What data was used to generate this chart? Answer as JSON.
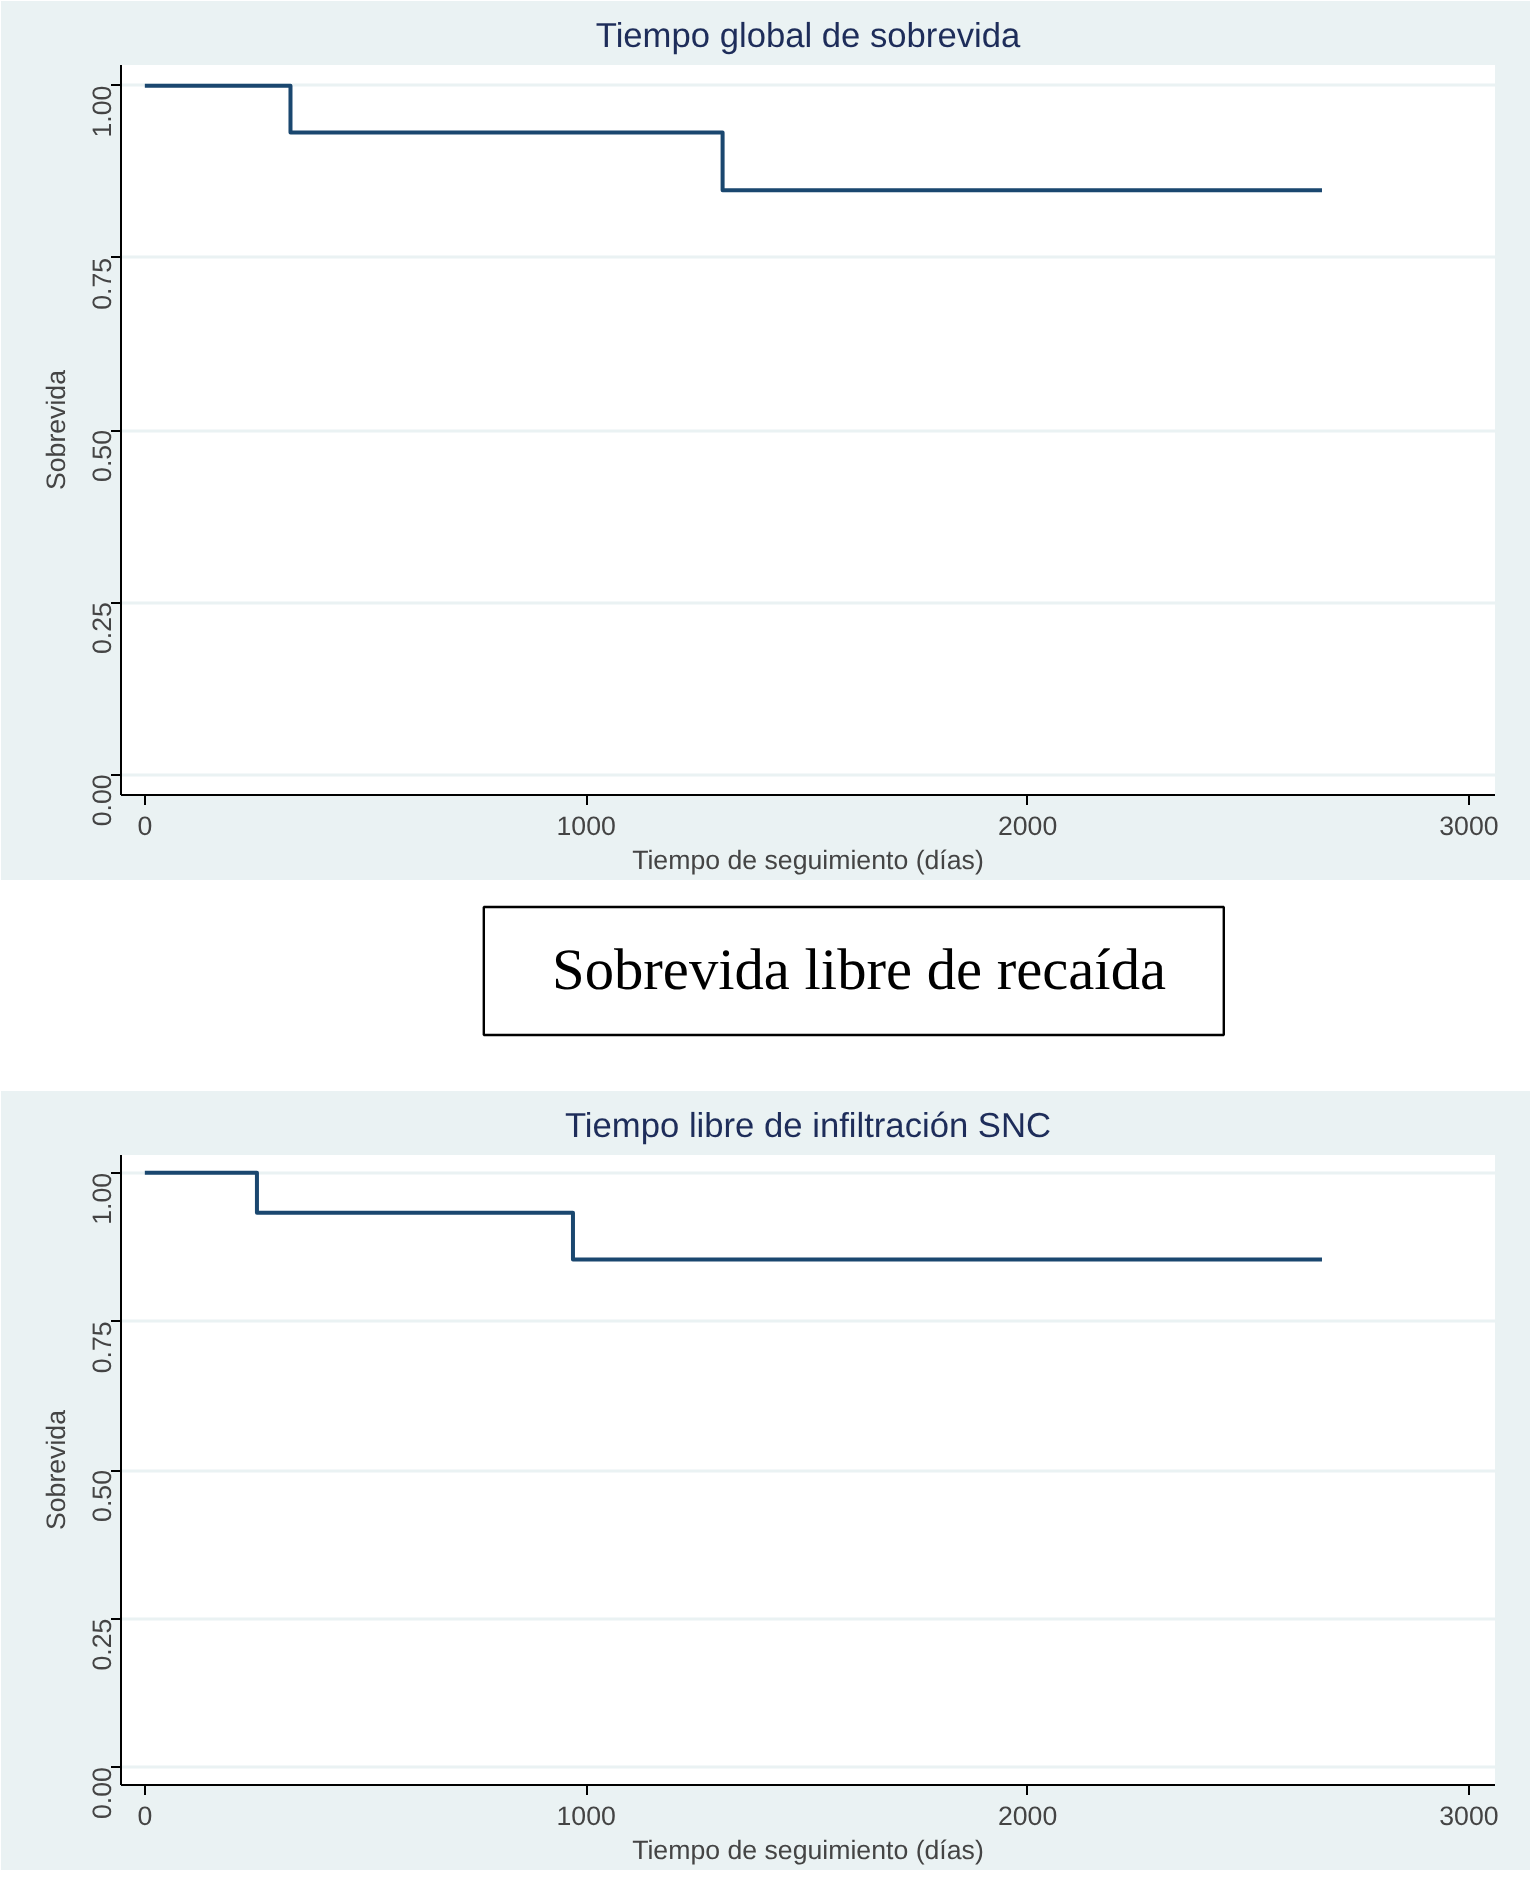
{
  "chart_data": [
    {
      "type": "step",
      "title": "Tiempo global de sobrevida",
      "xlabel": "Tiempo de seguimiento (días)",
      "ylabel": "Sobrevida",
      "x": [
        0,
        330,
        1309,
        2667
      ],
      "values": [
        1.0,
        0.932,
        0.848,
        0.848
      ],
      "color": "#1a476f",
      "xlim": [
        -54,
        3059
      ],
      "ylim": [
        -0.03,
        1.03
      ],
      "xticks": [
        0,
        1000,
        2000,
        3000
      ],
      "yticks": [
        {
          "value": 0,
          "label": "0.00"
        },
        {
          "value": 0.25,
          "label": "0.25"
        },
        {
          "value": 0.5,
          "label": "0.50"
        },
        {
          "value": 0.75,
          "label": "0.75"
        },
        {
          "value": 1,
          "label": "1.00"
        }
      ],
      "grid": "y"
    },
    {
      "type": "other",
      "title": "Sobrevida libre de recaída"
    },
    {
      "type": "step",
      "title": "Tiempo libre de infiltración SNC",
      "xlabel": "Tiempo de seguimiento (días)",
      "ylabel": "Sobrevida",
      "x": [
        0,
        254,
        970,
        2667
      ],
      "values": [
        1.0,
        0.933,
        0.854,
        0.854
      ],
      "color": "#1a476f",
      "xlim": [
        -54,
        3059
      ],
      "ylim": [
        -0.03,
        1.03
      ],
      "xticks": [
        0,
        1000,
        2000,
        3000
      ],
      "yticks": [
        {
          "value": 0,
          "label": "0.00"
        },
        {
          "value": 0.25,
          "label": "0.25"
        },
        {
          "value": 0.5,
          "label": "0.50"
        },
        {
          "value": 0.75,
          "label": "0.75"
        },
        {
          "value": 1,
          "label": "1.00"
        }
      ],
      "grid": "y"
    }
  ]
}
